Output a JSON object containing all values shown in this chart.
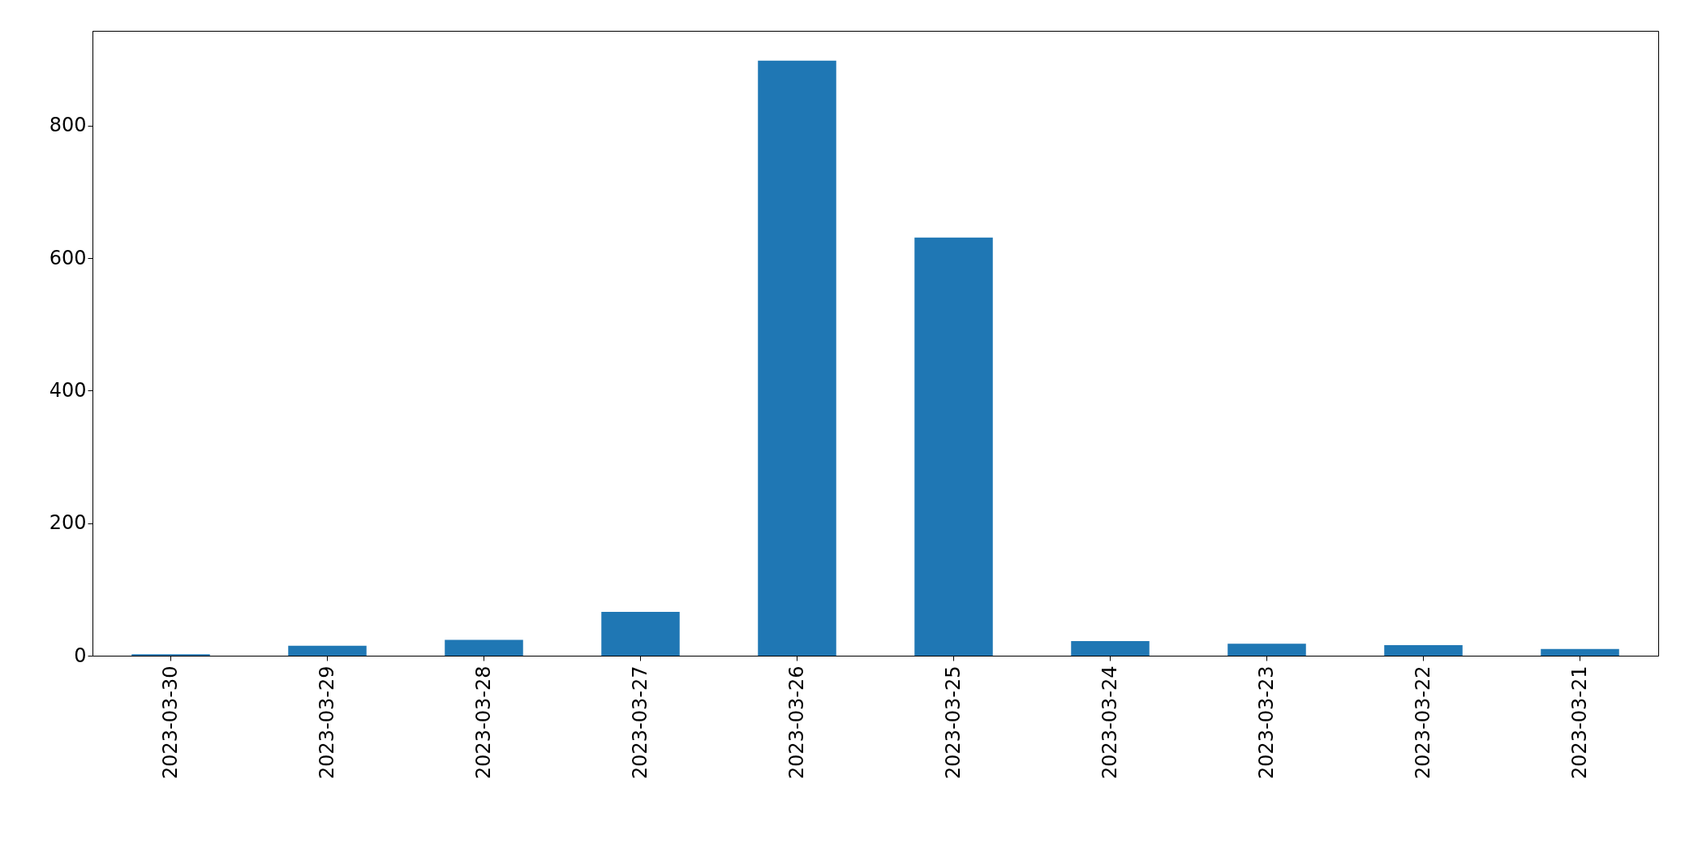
{
  "chart_data": {
    "type": "bar",
    "categories": [
      "2023-03-30",
      "2023-03-29",
      "2023-03-28",
      "2023-03-27",
      "2023-03-26",
      "2023-03-25",
      "2023-03-24",
      "2023-03-23",
      "2023-03-22",
      "2023-03-21"
    ],
    "values": [
      2,
      15,
      24,
      66,
      898,
      631,
      22,
      18,
      16,
      10
    ],
    "color": "#1f77b4",
    "ylim": [
      0,
      943
    ],
    "yticks": [
      0,
      200,
      400,
      600,
      800
    ],
    "grid": false
  }
}
